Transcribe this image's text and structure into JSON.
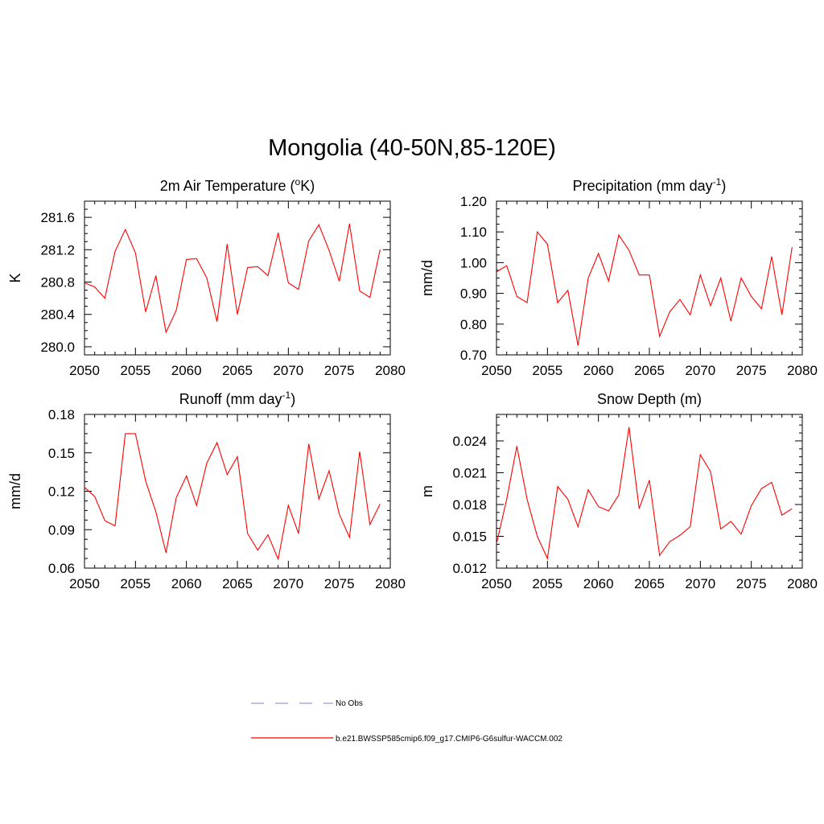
{
  "title": "Mongolia (40-50N,85-120E)",
  "colors": {
    "model": "#ff0000",
    "obs": "#9999dd"
  },
  "legend": {
    "obs_label": "No Obs",
    "model_label": "b.e21.BWSSP585cmip6.f09_g17.CMIP6-G6sulfur-WACCM.002"
  },
  "chart_data": [
    {
      "type": "line",
      "title": "2m Air Temperature (°K)",
      "title_base": "2m Air Temperature (",
      "title_sup": "o",
      "title_tail": "K)",
      "ylabel": "K",
      "xlim": [
        2050,
        2080
      ],
      "ylim": [
        279.9,
        281.8
      ],
      "yticks": [
        280.0,
        280.4,
        280.8,
        281.2,
        281.6
      ],
      "ytick_labels": [
        "280.0",
        "280.4",
        "280.8",
        "281.2",
        "281.6"
      ],
      "xticks": [
        2050,
        2055,
        2060,
        2065,
        2070,
        2075,
        2080
      ],
      "x": [
        2050,
        2051,
        2052,
        2053,
        2054,
        2055,
        2056,
        2057,
        2058,
        2059,
        2060,
        2061,
        2062,
        2063,
        2064,
        2065,
        2066,
        2067,
        2068,
        2069,
        2070,
        2071,
        2072,
        2073,
        2074,
        2075,
        2076,
        2077,
        2078,
        2079
      ],
      "series": [
        {
          "values": [
            280.79,
            280.74,
            280.6,
            281.18,
            281.45,
            281.16,
            280.43,
            280.88,
            280.18,
            280.45,
            281.08,
            281.09,
            280.85,
            280.31,
            281.27,
            280.4,
            280.98,
            280.99,
            280.88,
            281.41,
            280.79,
            280.71,
            281.31,
            281.51,
            281.19,
            280.81,
            281.52,
            280.69,
            280.61,
            281.2
          ]
        }
      ]
    },
    {
      "type": "line",
      "title": "Precipitation (mm day-1)",
      "title_base": "Precipitation (mm day",
      "title_sup": "-1",
      "title_tail": ")",
      "ylabel": "mm/d",
      "xlim": [
        2050,
        2080
      ],
      "ylim": [
        0.7,
        1.2
      ],
      "yticks": [
        0.7,
        0.8,
        0.9,
        1.0,
        1.1,
        1.2
      ],
      "ytick_labels": [
        "0.70",
        "0.80",
        "0.90",
        "1.00",
        "1.10",
        "1.20"
      ],
      "xticks": [
        2050,
        2055,
        2060,
        2065,
        2070,
        2075,
        2080
      ],
      "x": [
        2050,
        2051,
        2052,
        2053,
        2054,
        2055,
        2056,
        2057,
        2058,
        2059,
        2060,
        2061,
        2062,
        2063,
        2064,
        2065,
        2066,
        2067,
        2068,
        2069,
        2070,
        2071,
        2072,
        2073,
        2074,
        2075,
        2076,
        2077,
        2078,
        2079
      ],
      "series": [
        {
          "values": [
            0.97,
            0.99,
            0.89,
            0.87,
            1.1,
            1.06,
            0.87,
            0.91,
            0.73,
            0.95,
            1.03,
            0.94,
            1.09,
            1.04,
            0.96,
            0.96,
            0.76,
            0.84,
            0.88,
            0.83,
            0.96,
            0.86,
            0.95,
            0.81,
            0.95,
            0.89,
            0.85,
            1.02,
            0.83,
            1.05
          ]
        }
      ]
    },
    {
      "type": "line",
      "title": "Runoff (mm day-1)",
      "title_base": "Runoff (mm day",
      "title_sup": "-1",
      "title_tail": ")",
      "ylabel": "mm/d",
      "xlim": [
        2050,
        2080
      ],
      "ylim": [
        0.06,
        0.18
      ],
      "yticks": [
        0.06,
        0.09,
        0.12,
        0.15,
        0.18
      ],
      "ytick_labels": [
        "0.06",
        "0.09",
        "0.12",
        "0.15",
        "0.18"
      ],
      "xticks": [
        2050,
        2055,
        2060,
        2065,
        2070,
        2075,
        2080
      ],
      "x": [
        2050,
        2051,
        2052,
        2053,
        2054,
        2055,
        2056,
        2057,
        2058,
        2059,
        2060,
        2061,
        2062,
        2063,
        2064,
        2065,
        2066,
        2067,
        2068,
        2069,
        2070,
        2071,
        2072,
        2073,
        2074,
        2075,
        2076,
        2077,
        2078,
        2079
      ],
      "series": [
        {
          "values": [
            0.123,
            0.116,
            0.097,
            0.093,
            0.165,
            0.165,
            0.128,
            0.104,
            0.072,
            0.115,
            0.132,
            0.109,
            0.142,
            0.158,
            0.133,
            0.147,
            0.087,
            0.074,
            0.086,
            0.067,
            0.109,
            0.087,
            0.157,
            0.114,
            0.136,
            0.102,
            0.084,
            0.151,
            0.094,
            0.11
          ]
        }
      ]
    },
    {
      "type": "line",
      "title": "Snow Depth (m)",
      "title_base": "Snow Depth (m)",
      "title_sup": "",
      "title_tail": "",
      "ylabel": "m",
      "xlim": [
        2050,
        2080
      ],
      "ylim": [
        0.012,
        0.0265
      ],
      "yticks": [
        0.012,
        0.015,
        0.018,
        0.021,
        0.024
      ],
      "ytick_labels": [
        "0.012",
        "0.015",
        "0.018",
        "0.021",
        "0.024"
      ],
      "xticks": [
        2050,
        2055,
        2060,
        2065,
        2070,
        2075,
        2080
      ],
      "x": [
        2050,
        2051,
        2052,
        2053,
        2054,
        2055,
        2056,
        2057,
        2058,
        2059,
        2060,
        2061,
        2062,
        2063,
        2064,
        2065,
        2066,
        2067,
        2068,
        2069,
        2070,
        2071,
        2072,
        2073,
        2074,
        2075,
        2076,
        2077,
        2078,
        2079
      ],
      "series": [
        {
          "values": [
            0.0143,
            0.0185,
            0.0235,
            0.0185,
            0.015,
            0.0129,
            0.0197,
            0.0185,
            0.0159,
            0.0194,
            0.0178,
            0.0174,
            0.0189,
            0.0253,
            0.0176,
            0.0203,
            0.0132,
            0.0145,
            0.0151,
            0.0159,
            0.0227,
            0.0211,
            0.0157,
            0.0164,
            0.0152,
            0.0179,
            0.0195,
            0.0201,
            0.017,
            0.0176
          ]
        }
      ]
    }
  ]
}
